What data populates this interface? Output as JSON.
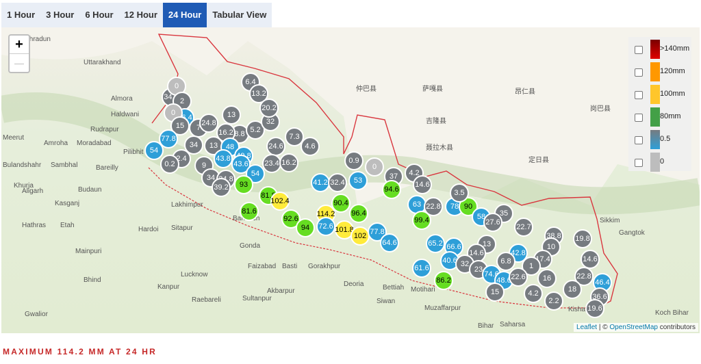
{
  "tabs": [
    "1 Hour",
    "3 Hour",
    "6 Hour",
    "12 Hour",
    "24 Hour",
    "Tabular View"
  ],
  "zoom": [
    "+",
    "—"
  ],
  "legend": [
    ">140mm",
    "120mm",
    "100mm",
    "80mm",
    "0.5",
    "0"
  ],
  "places": [
    "Dehradun",
    "Uttarakhand",
    "Almora",
    "Haldwani",
    "Rudrapur",
    "Meerut",
    "Amroha",
    "Moradabad",
    "Pilibhit",
    "Bulandshahr",
    "Sambhal",
    "Bareilly",
    "Khurja",
    "Budaun",
    "Aligarh",
    "Kasganj",
    "Hathras",
    "Etah",
    "Mainpuri",
    "Lakhimpur",
    "Sitapur",
    "Hardoi",
    "Bahraich",
    "Gonda",
    "Lucknow",
    "Kanpur",
    "Raebareli",
    "Sultanpur",
    "Faizabad",
    "Basti",
    "Gorakhpur",
    "Deoria",
    "Bettiah",
    "Siwan",
    "Motihari",
    "Muzaffarpur",
    "Saharsa",
    "Bihar",
    "Kishanganj",
    "Gwalior",
    "Bhind",
    "Akbarpur",
    "Sikkim",
    "Gangtok",
    "Koch Bihar",
    "仲巴县",
    "萨嘎县",
    "昂仁县",
    "吉隆县",
    "聂拉木县",
    "定日县",
    "岗巴县"
  ],
  "markers": [
    34.8,
    6.4,
    13.2,
    0,
    2,
    66.4,
    0,
    15,
    7,
    24.8,
    13,
    8.8,
    16.2,
    77.8,
    54,
    34,
    13,
    48,
    5.2,
    32,
    20.2,
    7.3,
    4.6,
    24.6,
    43.8,
    49.8,
    43.6,
    2.4,
    0.2,
    9,
    23.4,
    16.2,
    54,
    34,
    24.8,
    39.2,
    93,
    0.9,
    0,
    41.2,
    32.4,
    53,
    37,
    4.2,
    14.6,
    81.8,
    102.4,
    81.6,
    92.6,
    90.4,
    114.2,
    96.4,
    94.6,
    63,
    22.8,
    78,
    90,
    3.5,
    58,
    35,
    27.6,
    22.7,
    99.4,
    94,
    72.6,
    101.8,
    102,
    77.8,
    64.6,
    65.2,
    66.6,
    13,
    14.6,
    42.8,
    38.8,
    10,
    19.8,
    17.4,
    14.6,
    6.8,
    40.6,
    32,
    61.6,
    23,
    74.6,
    48.6,
    86.2,
    1,
    22.6,
    16,
    22.8,
    46.4,
    15,
    4.2,
    2.2,
    18,
    36.6,
    19.6
  ],
  "attribution": {
    "leaflet": "Leaflet",
    "separator": " | © ",
    "osm": "OpenStreetMap",
    "suffix": " contributors"
  },
  "footer": "MAXIMUM 114.2 MM AT 24 HR"
}
